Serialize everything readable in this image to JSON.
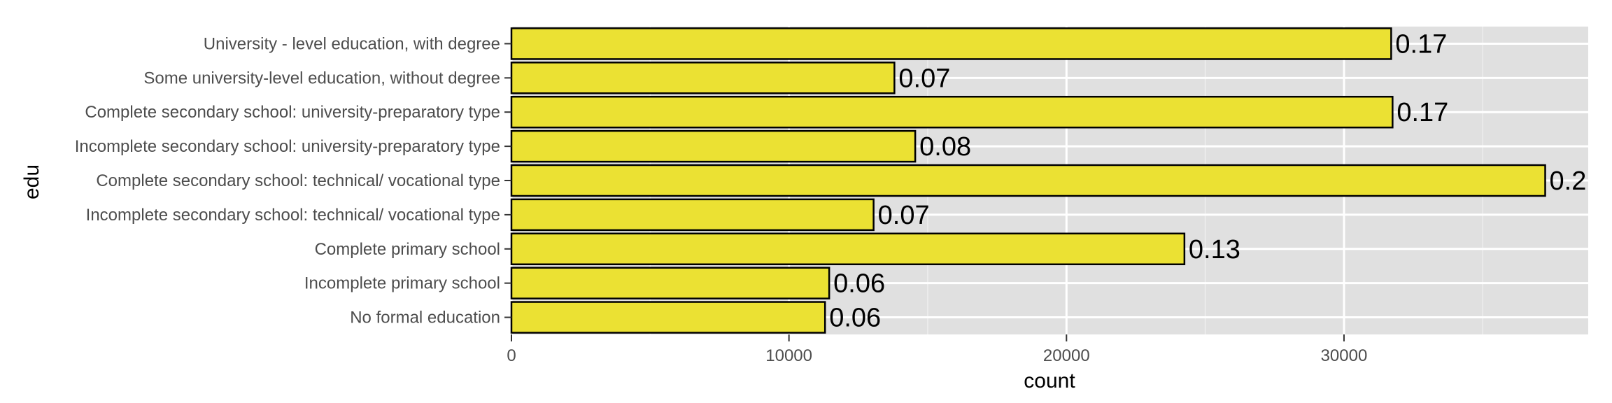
{
  "chart_data": {
    "type": "bar",
    "orientation": "horizontal",
    "title": "",
    "xlabel": "count",
    "ylabel": "edu",
    "xlim": [
      0,
      38800
    ],
    "x_ticks": [
      0,
      10000,
      20000,
      30000
    ],
    "x_tick_labels": [
      "0",
      "10000",
      "20000",
      "30000"
    ],
    "grid": true,
    "categories": [
      "University - level education, with degree",
      "Some university-level education, without degree",
      "Complete secondary school: university-preparatory type",
      "Incomplete secondary school: university-preparatory type",
      "Complete secondary school: technical/ vocational type",
      "Incomplete secondary school: technical/ vocational type",
      "Complete primary school",
      "Incomplete primary school",
      "No formal education"
    ],
    "values": [
      31700,
      13800,
      31750,
      14550,
      37250,
      13050,
      24250,
      11450,
      11300
    ],
    "data_labels": [
      "0.17",
      "0.07",
      "0.17",
      "0.08",
      "0.2",
      "0.07",
      "0.13",
      "0.06",
      "0.06"
    ],
    "colors": {
      "bar_fill": "#ebe133",
      "bar_stroke": "#000000",
      "panel_background": "#e0e0e0",
      "grid_major": "#ffffff",
      "grid_minor": "#eeeeee"
    }
  }
}
